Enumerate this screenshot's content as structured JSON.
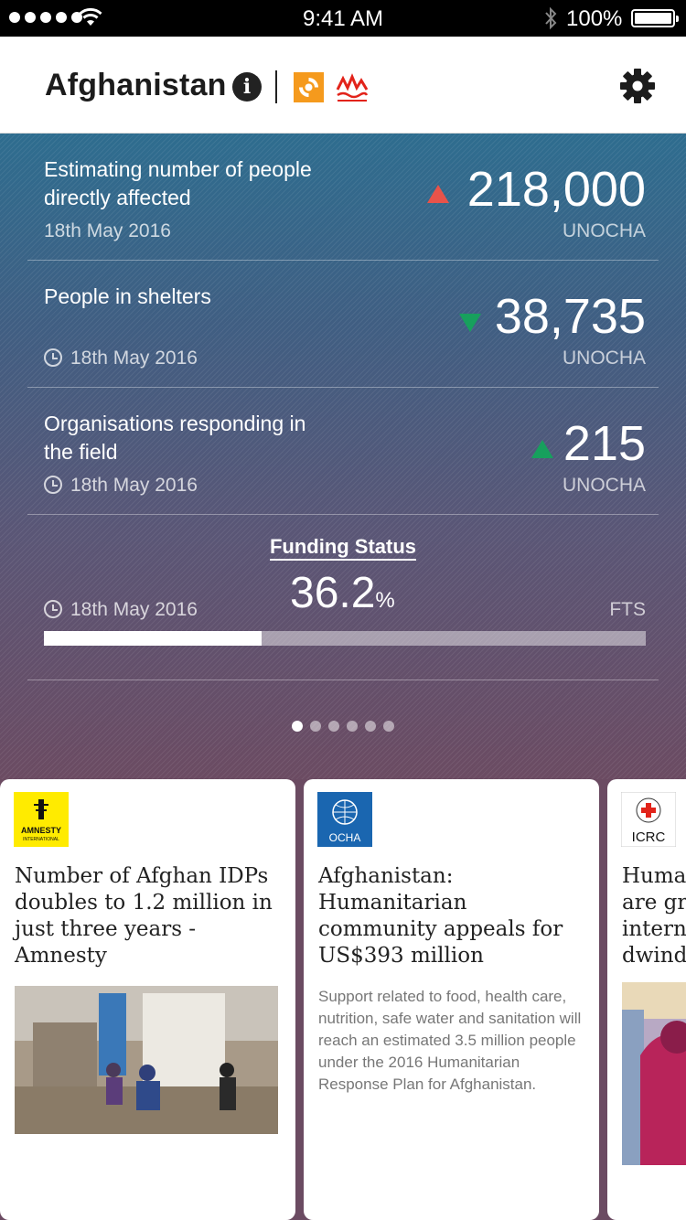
{
  "status_bar": {
    "time": "9:41 AM",
    "battery": "100%"
  },
  "header": {
    "title": "Afghanistan",
    "info_glyph": "i"
  },
  "stats": [
    {
      "label": "Estimating number of people directly affected",
      "date": "18th May 2016",
      "value": "218,000",
      "source": "UNOCHA",
      "trend": "up",
      "trend_color": "#e8534a",
      "show_clock": false
    },
    {
      "label": "People in shelters",
      "date": "18th May 2016",
      "value": "38,735",
      "source": "UNOCHA",
      "trend": "down",
      "trend_color": "#17a05d",
      "show_clock": true
    },
    {
      "label": "Organisations responding in the field",
      "date": "18th May 2016",
      "value": "215",
      "source": "UNOCHA",
      "trend": "up",
      "trend_color": "#17a05d",
      "show_clock": true
    }
  ],
  "funding": {
    "title": "Funding Status",
    "value": "36.2",
    "unit": "%",
    "percent": 36.2,
    "date": "18th May 2016",
    "source": "FTS"
  },
  "pager": {
    "count": 6,
    "active": 0
  },
  "news": [
    {
      "logo": "AMNESTY INTERNATIONAL",
      "logo_color": "#ffeb00",
      "title": "Number of Afghan IDPs doubles to 1.2 million in just three years - Amnesty",
      "has_photo": true
    },
    {
      "logo": "OCHA",
      "logo_color": "#1a66b0",
      "title": "Afghanistan: Humanitarian community appeals for US$393 million",
      "text": "Support related to food, health care, nutrition, safe water and sanitation will reach an estimated 3.5 million people under the 2016 Humanitarian Response Plan for Afghanistan."
    },
    {
      "logo": "ICRC",
      "logo_color": "#e2231a",
      "title": "Huma are gr intern dwind",
      "has_photo": true
    }
  ]
}
